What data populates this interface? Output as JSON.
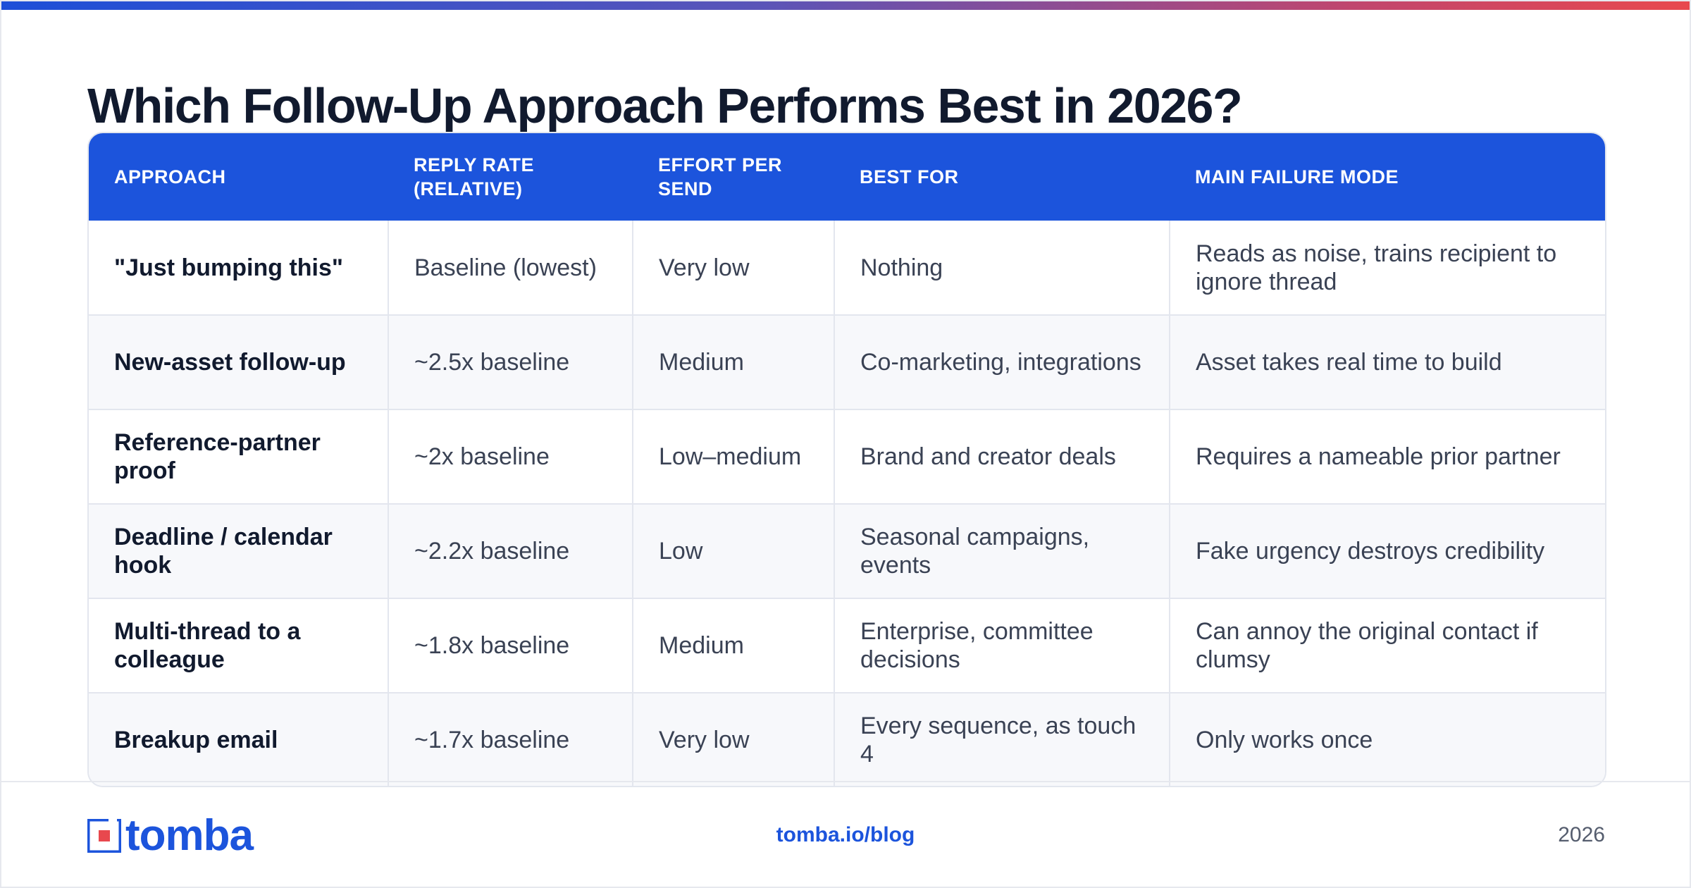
{
  "title": "Which Follow-Up Approach Performs Best in 2026?",
  "table": {
    "headers": [
      "APPROACH",
      "REPLY RATE (RELATIVE)",
      "EFFORT PER SEND",
      "BEST FOR",
      "MAIN FAILURE MODE"
    ],
    "rows": [
      [
        "\"Just bumping this\"",
        "Baseline (lowest)",
        "Very low",
        "Nothing",
        "Reads as noise, trains recipient to ignore thread"
      ],
      [
        "New-asset follow-up",
        "~2.5x baseline",
        "Medium",
        "Co-marketing, integrations",
        "Asset takes real time to build"
      ],
      [
        "Reference-partner proof",
        "~2x baseline",
        "Low–medium",
        "Brand and creator deals",
        "Requires a nameable prior partner"
      ],
      [
        "Deadline / calendar hook",
        "~2.2x baseline",
        "Low",
        "Seasonal campaigns, events",
        "Fake urgency destroys credibility"
      ],
      [
        "Multi-thread to a colleague",
        "~1.8x baseline",
        "Medium",
        "Enterprise, committee decisions",
        "Can annoy the original contact if clumsy"
      ],
      [
        "Breakup email",
        "~1.7x baseline",
        "Very low",
        "Every sequence, as touch 4",
        "Only works once"
      ]
    ]
  },
  "footer": {
    "logo_text": "tomba",
    "link": "tomba.io/blog",
    "year": "2026"
  },
  "colors": {
    "accent": "#1c54dc",
    "title": "#111a2e"
  },
  "icons": {
    "logo": "tomba-logo-icon"
  }
}
